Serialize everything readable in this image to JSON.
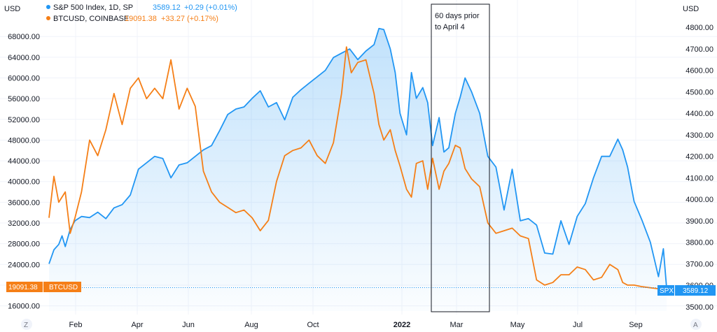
{
  "chart_data": {
    "type": "line",
    "currency_label_left": "USD",
    "currency_label_right": "USD",
    "x_tick_labels": [
      "Feb",
      "Apr",
      "Jun",
      "Aug",
      "Oct",
      "2022",
      "Mar",
      "May",
      "Jul",
      "Sep"
    ],
    "left_axis": {
      "ticks": [
        "68000.00",
        "64000.00",
        "60000.00",
        "56000.00",
        "52000.00",
        "48000.00",
        "44000.00",
        "40000.00",
        "36000.00",
        "32000.00",
        "28000.00",
        "24000.00",
        "20000.00",
        "16000.00"
      ],
      "range": [
        15000,
        71000
      ]
    },
    "right_axis": {
      "ticks": [
        "4800.00",
        "4700.00",
        "4600.00",
        "4500.00",
        "4400.00",
        "4300.00",
        "4200.00",
        "4100.00",
        "4000.00",
        "3900.00",
        "3800.00",
        "3700.00",
        "3600.00",
        "3500.00"
      ],
      "range": [
        3480,
        4830
      ]
    },
    "series": [
      {
        "symbol": "SPX",
        "legend_name": "S&P 500 Index, 1D, SP",
        "legend_value": "3589.12",
        "legend_change": "+0.29 (+0.01%)",
        "last_value_label": "3589.12",
        "color": "#2196f3",
        "axis": "right",
        "points": [
          [
            0,
            3700
          ],
          [
            0.3,
            3765
          ],
          [
            0.6,
            3790
          ],
          [
            0.8,
            3830
          ],
          [
            1.0,
            3780
          ],
          [
            1.3,
            3860
          ],
          [
            1.6,
            3900
          ],
          [
            2.0,
            3920
          ],
          [
            2.5,
            3915
          ],
          [
            3.0,
            3940
          ],
          [
            3.5,
            3910
          ],
          [
            4.0,
            3960
          ],
          [
            4.5,
            3975
          ],
          [
            5.0,
            4020
          ],
          [
            5.5,
            4140
          ],
          [
            6.0,
            4170
          ],
          [
            6.5,
            4200
          ],
          [
            7.0,
            4190
          ],
          [
            7.5,
            4100
          ],
          [
            8.0,
            4160
          ],
          [
            8.5,
            4170
          ],
          [
            9.0,
            4200
          ],
          [
            9.5,
            4230
          ],
          [
            10.0,
            4250
          ],
          [
            10.5,
            4320
          ],
          [
            11.0,
            4395
          ],
          [
            11.5,
            4420
          ],
          [
            12.0,
            4430
          ],
          [
            12.5,
            4470
          ],
          [
            13.0,
            4505
          ],
          [
            13.5,
            4430
          ],
          [
            14.0,
            4450
          ],
          [
            14.5,
            4370
          ],
          [
            15.0,
            4475
          ],
          [
            15.5,
            4510
          ],
          [
            16.0,
            4540
          ],
          [
            16.5,
            4570
          ],
          [
            17.0,
            4600
          ],
          [
            17.5,
            4660
          ],
          [
            18.0,
            4680
          ],
          [
            18.5,
            4700
          ],
          [
            19.0,
            4650
          ],
          [
            19.5,
            4690
          ],
          [
            20.0,
            4720
          ],
          [
            20.3,
            4795
          ],
          [
            20.6,
            4790
          ],
          [
            21.0,
            4700
          ],
          [
            21.3,
            4590
          ],
          [
            21.6,
            4400
          ],
          [
            22.0,
            4300
          ],
          [
            22.3,
            4590
          ],
          [
            22.6,
            4470
          ],
          [
            23.0,
            4520
          ],
          [
            23.3,
            4450
          ],
          [
            23.6,
            4250
          ],
          [
            24.0,
            4380
          ],
          [
            24.3,
            4220
          ],
          [
            24.6,
            4240
          ],
          [
            25.0,
            4400
          ],
          [
            25.3,
            4475
          ],
          [
            25.6,
            4565
          ],
          [
            26.0,
            4500
          ],
          [
            26.5,
            4400
          ],
          [
            27.0,
            4200
          ],
          [
            27.5,
            4150
          ],
          [
            28.0,
            3950
          ],
          [
            28.5,
            4140
          ],
          [
            29.0,
            3900
          ],
          [
            29.5,
            3910
          ],
          [
            30.0,
            3880
          ],
          [
            30.5,
            3750
          ],
          [
            31.0,
            3745
          ],
          [
            31.5,
            3900
          ],
          [
            32.0,
            3790
          ],
          [
            32.5,
            3920
          ],
          [
            33.0,
            3980
          ],
          [
            33.5,
            4100
          ],
          [
            34.0,
            4200
          ],
          [
            34.5,
            4200
          ],
          [
            35.0,
            4280
          ],
          [
            35.3,
            4230
          ],
          [
            35.6,
            4150
          ],
          [
            36.0,
            3990
          ],
          [
            36.5,
            3900
          ],
          [
            37.0,
            3800
          ],
          [
            37.5,
            3640
          ],
          [
            37.8,
            3770
          ],
          [
            38.0,
            3589.12
          ]
        ]
      },
      {
        "symbol": "BTCUSD",
        "legend_name": "BTCUSD, COINBASE",
        "legend_value": "19091.38",
        "legend_change": "+33.27 (+0.17%)",
        "last_value_label": "19091.38",
        "color": "#f57f17",
        "axis": "left",
        "points": [
          [
            0,
            33000
          ],
          [
            0.3,
            41000
          ],
          [
            0.6,
            36000
          ],
          [
            1.0,
            38000
          ],
          [
            1.3,
            30000
          ],
          [
            1.6,
            33000
          ],
          [
            2.0,
            38000
          ],
          [
            2.5,
            48000
          ],
          [
            3.0,
            45000
          ],
          [
            3.5,
            50000
          ],
          [
            4.0,
            57000
          ],
          [
            4.5,
            51000
          ],
          [
            5.0,
            58000
          ],
          [
            5.5,
            60000
          ],
          [
            6.0,
            56000
          ],
          [
            6.5,
            58000
          ],
          [
            7.0,
            56000
          ],
          [
            7.5,
            63500
          ],
          [
            8.0,
            54000
          ],
          [
            8.5,
            58000
          ],
          [
            9.0,
            54500
          ],
          [
            9.5,
            42000
          ],
          [
            10.0,
            38000
          ],
          [
            10.5,
            36000
          ],
          [
            11.0,
            35000
          ],
          [
            11.5,
            34000
          ],
          [
            12.0,
            34500
          ],
          [
            12.5,
            33000
          ],
          [
            13.0,
            30500
          ],
          [
            13.5,
            32500
          ],
          [
            14.0,
            40000
          ],
          [
            14.5,
            45000
          ],
          [
            15.0,
            46000
          ],
          [
            15.5,
            46500
          ],
          [
            16.0,
            48000
          ],
          [
            16.5,
            45000
          ],
          [
            17.0,
            43500
          ],
          [
            17.5,
            47500
          ],
          [
            18.0,
            57000
          ],
          [
            18.3,
            66000
          ],
          [
            18.6,
            61000
          ],
          [
            19.0,
            63000
          ],
          [
            19.5,
            63500
          ],
          [
            20.0,
            57000
          ],
          [
            20.3,
            51000
          ],
          [
            20.6,
            48000
          ],
          [
            21.0,
            50000
          ],
          [
            21.3,
            46000
          ],
          [
            21.6,
            43000
          ],
          [
            22.0,
            38500
          ],
          [
            22.3,
            37000
          ],
          [
            22.6,
            43500
          ],
          [
            23.0,
            44000
          ],
          [
            23.3,
            38500
          ],
          [
            23.6,
            44500
          ],
          [
            24.0,
            38500
          ],
          [
            24.3,
            42000
          ],
          [
            24.6,
            43500
          ],
          [
            25.0,
            47000
          ],
          [
            25.3,
            46500
          ],
          [
            25.6,
            42500
          ],
          [
            26.0,
            40500
          ],
          [
            26.5,
            39000
          ],
          [
            27.0,
            32000
          ],
          [
            27.5,
            30000
          ],
          [
            28.0,
            30500
          ],
          [
            28.5,
            31000
          ],
          [
            29.0,
            29500
          ],
          [
            29.5,
            29000
          ],
          [
            30.0,
            21000
          ],
          [
            30.5,
            20000
          ],
          [
            31.0,
            20500
          ],
          [
            31.5,
            22000
          ],
          [
            32.0,
            22000
          ],
          [
            32.5,
            23500
          ],
          [
            33.0,
            23000
          ],
          [
            33.5,
            21000
          ],
          [
            34.0,
            21500
          ],
          [
            34.5,
            24000
          ],
          [
            35.0,
            23000
          ],
          [
            35.3,
            20500
          ],
          [
            35.6,
            20000
          ],
          [
            36.0,
            20000
          ],
          [
            36.5,
            19700
          ],
          [
            37.0,
            19500
          ],
          [
            37.5,
            19300
          ],
          [
            38.0,
            19091.38
          ]
        ]
      }
    ],
    "annotation": {
      "lines": [
        "60 days prior",
        "to April 4"
      ]
    },
    "corner_labels": {
      "left": "Z",
      "right": "A"
    }
  }
}
